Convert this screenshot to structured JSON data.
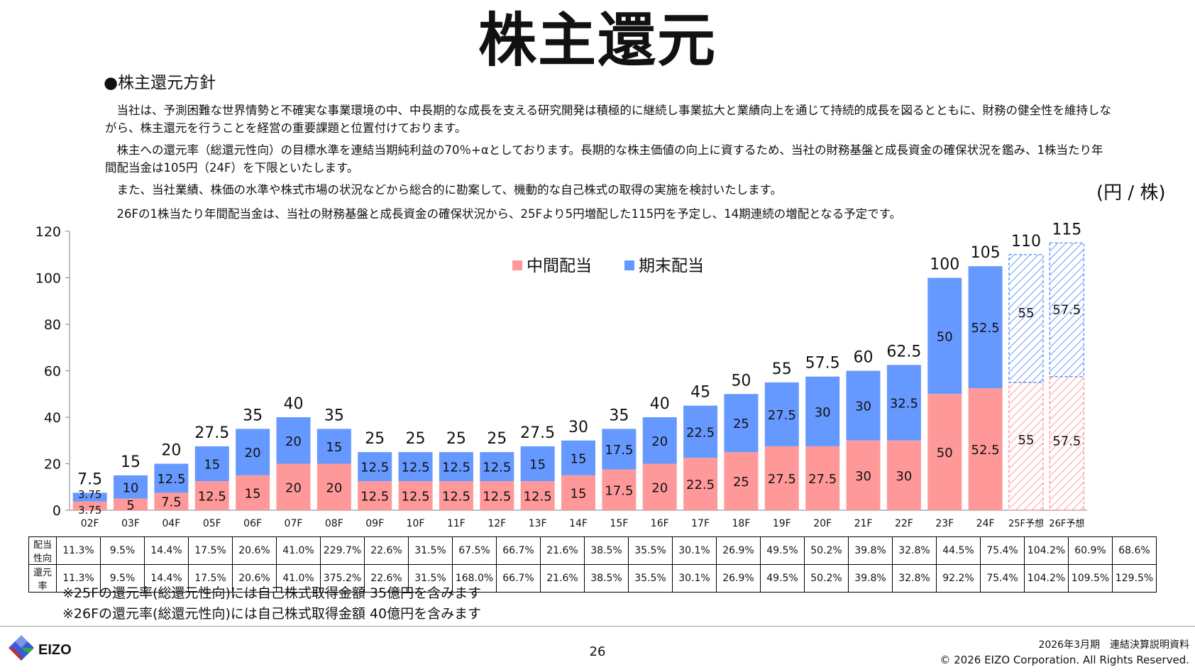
{
  "page": {
    "title": "株主還元",
    "policy_heading": "●株主還元方針",
    "paragraphs": [
      "　当社は、予測困難な世界情勢と不確実な事業環境の中、中長期的な成長を支える研究開発は積極的に継続し事業拡大と業績向上を通じて持続的成長を図るとともに、財務の健全性を維持しながら、株主還元を行うことを経営の重要課題と位置付けております。",
      "　株主への還元率（総還元性向）の目標水準を連結当期純利益の70％+αとしております。長期的な株主価値の向上に資するため、当社の財務基盤と成長資金の確保状況を鑑み、1株当たり年間配当金は105円（24F）を下限といたします。",
      "　また、当社業績、株価の水準や株式市場の状況などから総合的に勘案して、機動的な自己株式の取得の実施を検討いたします。",
      "　26Fの1株当たり年間配当金は、当社の財務基盤と成長資金の確保状況から、25Fより5円増配した115円を予定し、14期連続の増配となる予定です。"
    ],
    "unit": "(円 / 株)",
    "notes": [
      "※25Fの還元率(総還元性向)には自己株式取得金額 35億円を含みます",
      "※26Fの還元率(総還元性向)には自己株式取得金額 40億円を含みます"
    ],
    "page_number": "26",
    "footer_line1": "2026年3月期　連結決算説明資料",
    "footer_line2": "© 2026 EIZO Corporation. All Rights Reserved.",
    "logo_text": "EIZO"
  },
  "colors": {
    "interim": "#FF9999",
    "final": "#6699FF",
    "interim_forecast": "#FF9999",
    "final_forecast": "#6699FF"
  },
  "chart_data": {
    "type": "bar",
    "stacked": true,
    "categories": [
      "02F",
      "03F",
      "04F",
      "05F",
      "06F",
      "07F",
      "08F",
      "09F",
      "10F",
      "11F",
      "12F",
      "13F",
      "14F",
      "15F",
      "16F",
      "17F",
      "18F",
      "19F",
      "20F",
      "21F",
      "22F",
      "23F",
      "24F",
      "25F予想",
      "26F予想"
    ],
    "forecast": [
      false,
      false,
      false,
      false,
      false,
      false,
      false,
      false,
      false,
      false,
      false,
      false,
      false,
      false,
      false,
      false,
      false,
      false,
      false,
      false,
      false,
      false,
      false,
      true,
      true
    ],
    "series": [
      {
        "name": "中間配当",
        "values": [
          3.75,
          5,
          7.5,
          12.5,
          15,
          20,
          20,
          12.5,
          12.5,
          12.5,
          12.5,
          12.5,
          15,
          17.5,
          20,
          22.5,
          25,
          27.5,
          27.5,
          30,
          30,
          50,
          52.5,
          55,
          57.5
        ]
      },
      {
        "name": "期末配当",
        "values": [
          3.75,
          10,
          12.5,
          15,
          20,
          20,
          15,
          12.5,
          12.5,
          12.5,
          12.5,
          15,
          15,
          17.5,
          20,
          22.5,
          25,
          27.5,
          30,
          30,
          32.5,
          50,
          52.5,
          55,
          57.5
        ]
      }
    ],
    "totals": [
      "7.5",
      "15",
      "20",
      "27.5",
      "35",
      "40",
      "35",
      "25",
      "25",
      "25",
      "25",
      "27.5",
      "30",
      "35",
      "40",
      "45",
      "50",
      "55",
      "57.5",
      "60",
      "62.5",
      "100",
      "105",
      "110",
      "115"
    ],
    "interim_labels": [
      "3.75",
      "5",
      "7.5",
      "12.5",
      "15",
      "20",
      "20",
      "12.5",
      "12.5",
      "12.5",
      "12.5",
      "12.5",
      "15",
      "17.5",
      "20",
      "22.5",
      "25",
      "27.5",
      "27.5",
      "30",
      "30",
      "50",
      "52.5",
      "55",
      "57.5"
    ],
    "final_labels": [
      "3.75",
      "10",
      "12.5",
      "15",
      "20",
      "20",
      "15",
      "12.5",
      "12.5",
      "12.5",
      "12.5",
      "15",
      "15",
      "17.5",
      "20",
      "22.5",
      "25",
      "27.5",
      "30",
      "30",
      "32.5",
      "50",
      "52.5",
      "55",
      "57.5"
    ],
    "ylim": [
      0,
      120
    ],
    "yticks": [
      "0",
      "20",
      "40",
      "60",
      "80",
      "100",
      "120"
    ],
    "legend_position": "top-center",
    "xlabel": "",
    "ylabel": ""
  },
  "stats_table": {
    "rows": [
      {
        "label": "配当性向",
        "values": [
          "11.3%",
          "9.5%",
          "14.4%",
          "17.5%",
          "20.6%",
          "41.0%",
          "229.7%",
          "22.6%",
          "31.5%",
          "67.5%",
          "66.7%",
          "21.6%",
          "38.5%",
          "35.5%",
          "30.1%",
          "26.9%",
          "49.5%",
          "50.2%",
          "39.8%",
          "32.8%",
          "44.5%",
          "75.4%",
          "104.2%",
          "60.9%",
          "68.6%"
        ]
      },
      {
        "label": "還元率",
        "values": [
          "11.3%",
          "9.5%",
          "14.4%",
          "17.5%",
          "20.6%",
          "41.0%",
          "375.2%",
          "22.6%",
          "31.5%",
          "168.0%",
          "66.7%",
          "21.6%",
          "38.5%",
          "35.5%",
          "30.1%",
          "26.9%",
          "49.5%",
          "50.2%",
          "39.8%",
          "32.8%",
          "92.2%",
          "75.4%",
          "104.2%",
          "109.5%",
          "129.5%"
        ]
      }
    ]
  }
}
